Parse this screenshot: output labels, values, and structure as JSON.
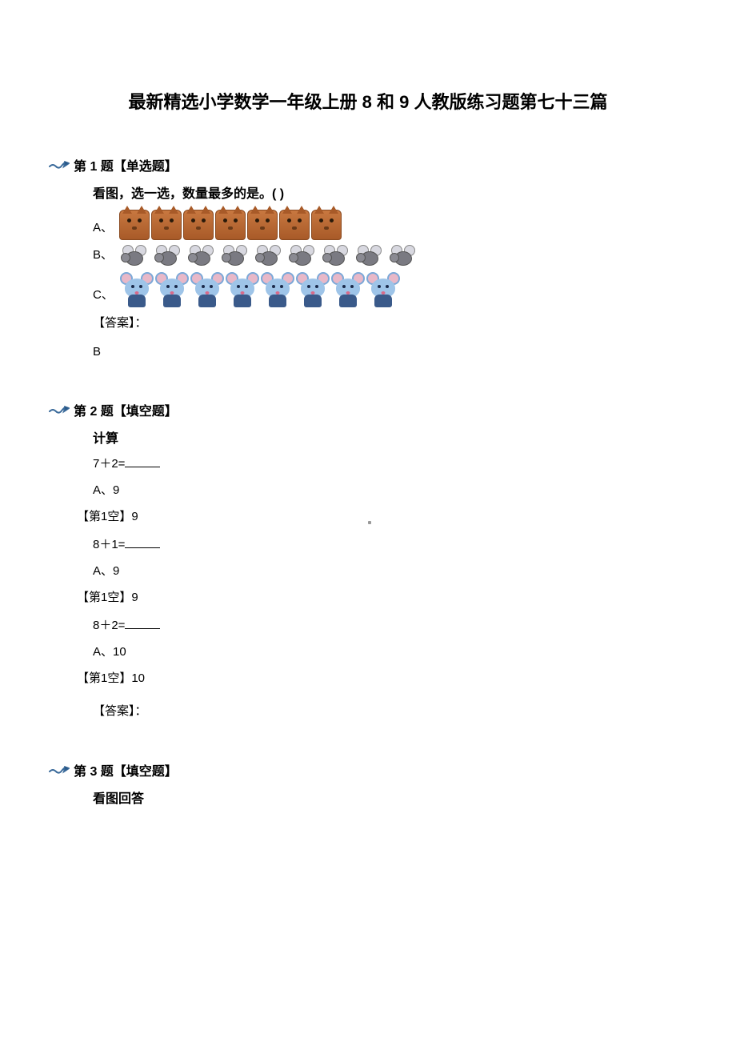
{
  "title": "最新精选小学数学一年级上册 8 和 9 人教版练习题第七十三篇",
  "q1": {
    "header": "第 1 题【单选题】",
    "prompt": "看图，选一选，数量最多的是。(     )",
    "optA": "A、",
    "optB": "B、",
    "optC": "C、",
    "counts": {
      "cats": 7,
      "bees": 9,
      "mice": 8
    },
    "answer_label": "【答案】：",
    "answer_val": "B"
  },
  "q2": {
    "header": "第 2 题【填空题】",
    "prompt": "计算",
    "items": [
      {
        "expr": "7＋2=",
        "opt": "A、9",
        "ans": "【第1空】9"
      },
      {
        "expr": "8＋1=",
        "opt": "A、9",
        "ans": "【第1空】9"
      },
      {
        "expr": "8＋2=",
        "opt": "A、10",
        "ans": "【第1空】10"
      }
    ],
    "answer_label": "【答案】："
  },
  "q3": {
    "header": "第 3 题【填空题】",
    "prompt": "看图回答"
  }
}
